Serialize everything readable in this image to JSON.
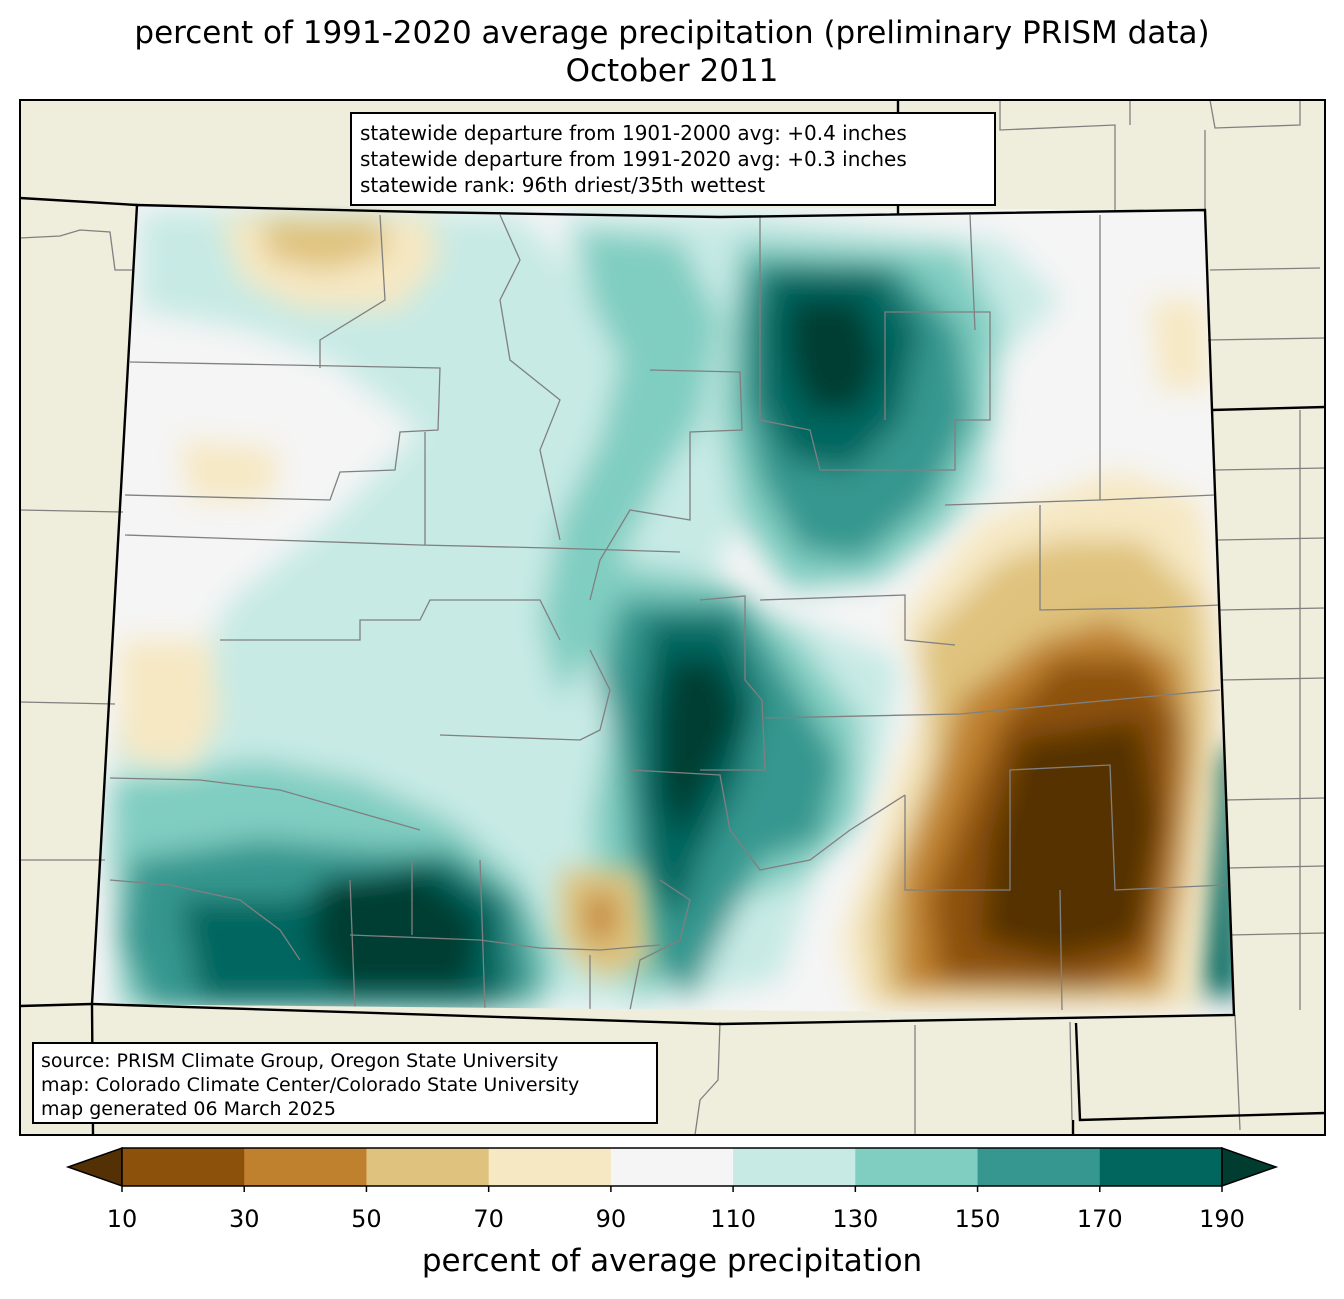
{
  "title": {
    "line1": "percent of 1991-2020 average precipitation (preliminary PRISM data)",
    "line2": "October 2011"
  },
  "stats": {
    "line1": "statewide departure from 1901-2000 avg: +0.4 inches",
    "line2": "statewide departure from 1991-2020 avg: +0.3 inches",
    "line3": "statewide rank: 96th driest/35th wettest"
  },
  "credits": {
    "source": "source: PRISM Climate Group, Oregon State University",
    "map": "map: Colorado Climate Center/Colorado State University",
    "generated": "map generated 06 March 2025"
  },
  "colorbar": {
    "label": "percent of average precipitation",
    "ticks": [
      "10",
      "30",
      "50",
      "70",
      "90",
      "110",
      "130",
      "150",
      "170",
      "190"
    ],
    "colors": [
      "#543005",
      "#8c510a",
      "#bf812d",
      "#dfc27d",
      "#f6e8c3",
      "#f5f5f5",
      "#c7eae5",
      "#80cdc1",
      "#35978f",
      "#01665e",
      "#003c30"
    ]
  },
  "map_colors": {
    "background": "#efeddb",
    "state_border": "#000000",
    "county_border": "#808080"
  }
}
